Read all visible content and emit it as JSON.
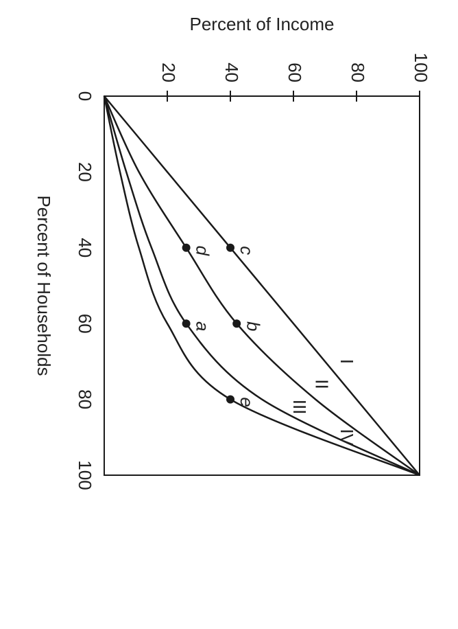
{
  "chart_data": {
    "type": "line",
    "x_label": "Percent of Households",
    "y_label": "Percent of Income",
    "x": [
      0,
      20,
      40,
      60,
      80,
      100
    ],
    "series": [
      {
        "name": "I",
        "color": "#1a1a1a",
        "values": [
          0,
          20,
          40,
          60,
          80,
          100
        ]
      },
      {
        "name": "II",
        "color": "#1a1a1a",
        "values": [
          0,
          11,
          26,
          42,
          67,
          100
        ]
      },
      {
        "name": "III",
        "color": "#1a1a1a",
        "values": [
          0,
          7,
          15,
          26,
          50,
          100
        ]
      },
      {
        "name": "IV",
        "color": "#1a1a1a",
        "values": [
          0,
          5,
          11,
          20,
          40,
          100
        ]
      }
    ],
    "points": [
      {
        "label": "c",
        "x": 40,
        "y": 40
      },
      {
        "label": "d",
        "x": 40,
        "y": 26
      },
      {
        "label": "b",
        "x": 60,
        "y": 42
      },
      {
        "label": "a",
        "x": 60,
        "y": 26
      },
      {
        "label": "e",
        "x": 80,
        "y": 40
      }
    ],
    "xlim": [
      0,
      100
    ],
    "ylim": [
      0,
      100
    ],
    "xticks": [
      0,
      20,
      40,
      60,
      80,
      100
    ],
    "yticks": [
      20,
      40,
      60,
      80,
      100
    ],
    "rotation": 90
  }
}
